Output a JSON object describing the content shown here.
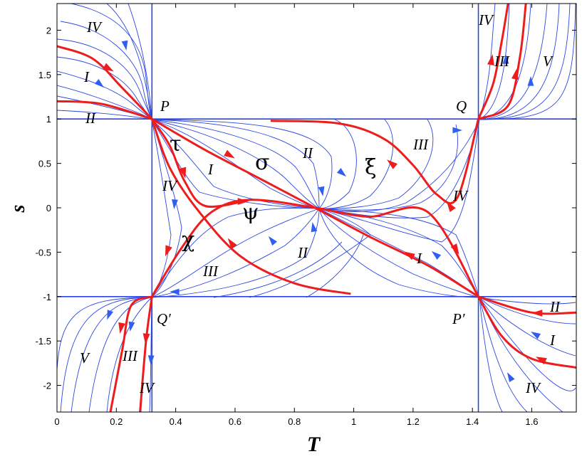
{
  "chart_data": {
    "type": "line",
    "title": "",
    "xlabel": "T",
    "ylabel": "s",
    "xlim": [
      0,
      1.75
    ],
    "ylim": [
      -2.3,
      2.3
    ],
    "x_ticks": [
      0,
      0.2,
      0.4,
      0.6,
      0.8,
      1,
      1.2,
      1.4,
      1.6
    ],
    "x_tick_labels": [
      "0",
      "0.2",
      "0.4",
      "0.6",
      "0.8",
      "1",
      "1.2",
      "1.4",
      "1.6"
    ],
    "y_ticks": [
      2,
      1.5,
      1,
      0.5,
      0,
      -0.5,
      -1,
      -1.5,
      -2
    ],
    "y_tick_labels": [
      "2",
      "1.5",
      "1",
      "0.5",
      "0",
      "-0.5",
      "-1",
      "-1.5",
      "-2"
    ],
    "grid": false,
    "colors": {
      "flow": "#2b45e0",
      "separatrix": "#ee1c1c",
      "arrow": "#2f5ff2",
      "axis": "#000000"
    },
    "boundary_lines": {
      "T": [
        0.32,
        1.42
      ],
      "s": [
        1,
        -1
      ]
    },
    "critical_points": [
      {
        "name": "P",
        "label": "P",
        "T": 0.32,
        "s": 1
      },
      {
        "name": "Q",
        "label": "Q",
        "T": 1.42,
        "s": 1
      },
      {
        "name": "Q-prime",
        "label": "Q′",
        "T": 0.32,
        "s": -1
      },
      {
        "name": "P-prime",
        "label": "P′",
        "T": 1.42,
        "s": -1
      },
      {
        "name": "center",
        "label": "",
        "T": 0.87,
        "s": 0
      }
    ],
    "separatrices": [
      {
        "label": "σ",
        "points": [
          [
            0.32,
            1
          ],
          [
            0.5,
            0.65
          ],
          [
            0.7,
            0.3
          ],
          [
            0.87,
            0
          ],
          [
            1.05,
            -0.32
          ],
          [
            1.25,
            -0.65
          ],
          [
            1.42,
            -1
          ]
        ]
      },
      {
        "label": "ξ",
        "points": [
          [
            0.72,
            0.98
          ],
          [
            0.95,
            0.95
          ],
          [
            1.1,
            0.78
          ],
          [
            1.2,
            0.48
          ],
          [
            1.28,
            0.15
          ],
          [
            1.35,
            0.12
          ],
          [
            1.42,
            1
          ]
        ]
      },
      {
        "label": "ψ",
        "points": [
          [
            0.32,
            -1
          ],
          [
            0.42,
            -0.45
          ],
          [
            0.52,
            -0.05
          ],
          [
            0.65,
            0.09
          ],
          [
            0.87,
            0
          ],
          [
            1.05,
            -0.1
          ],
          [
            1.25,
            -0.05
          ],
          [
            1.42,
            -1
          ]
        ]
      },
      {
        "label": "χ",
        "points": [
          [
            0.32,
            1
          ],
          [
            0.38,
            0.45
          ],
          [
            0.48,
            -0.05
          ],
          [
            0.62,
            -0.55
          ],
          [
            0.8,
            -0.85
          ],
          [
            0.99,
            -0.97
          ]
        ]
      },
      {
        "label": "τ",
        "points": [
          [
            0.32,
            1
          ],
          [
            0.38,
            0.7
          ],
          [
            0.43,
            0.3
          ],
          [
            0.5,
            0.02
          ],
          [
            0.65,
            0.09
          ]
        ]
      },
      {
        "label": "",
        "points": [
          [
            0,
            1.82
          ],
          [
            0.12,
            1.68
          ],
          [
            0.22,
            1.35
          ],
          [
            0.32,
            1
          ]
        ]
      },
      {
        "label": "",
        "points": [
          [
            0,
            1.2
          ],
          [
            0.15,
            1.17
          ],
          [
            0.32,
            1
          ]
        ]
      },
      {
        "label": "",
        "points": [
          [
            1.42,
            1
          ],
          [
            1.47,
            1.4
          ],
          [
            1.5,
            1.9
          ],
          [
            1.52,
            2.3
          ]
        ]
      },
      {
        "label": "",
        "points": [
          [
            1.42,
            1
          ],
          [
            1.52,
            1.15
          ],
          [
            1.56,
            1.7
          ],
          [
            1.58,
            2.3
          ]
        ]
      },
      {
        "label": "",
        "points": [
          [
            1.75,
            -1.18
          ],
          [
            1.6,
            -1.18
          ],
          [
            1.42,
            -1
          ]
        ]
      },
      {
        "label": "",
        "points": [
          [
            1.75,
            -1.8
          ],
          [
            1.6,
            -1.7
          ],
          [
            1.5,
            -1.45
          ],
          [
            1.42,
            -1
          ]
        ]
      },
      {
        "label": "",
        "points": [
          [
            0.32,
            -1
          ],
          [
            0.25,
            -1.1
          ],
          [
            0.22,
            -1.6
          ],
          [
            0.18,
            -2.3
          ]
        ]
      },
      {
        "label": "",
        "points": [
          [
            0.32,
            -1
          ],
          [
            0.3,
            -1.5
          ],
          [
            0.28,
            -2.3
          ]
        ]
      }
    ]
  },
  "labels": {
    "P": "P",
    "Q": "Q",
    "Q_prime": "Q′",
    "P_prime": "P′",
    "sigma": "σ",
    "xi": "ξ",
    "psi": "ψ",
    "chi": "χ",
    "tau": "τ",
    "I": "I",
    "II": "II",
    "III": "III",
    "IV": "IV",
    "V": "V"
  }
}
